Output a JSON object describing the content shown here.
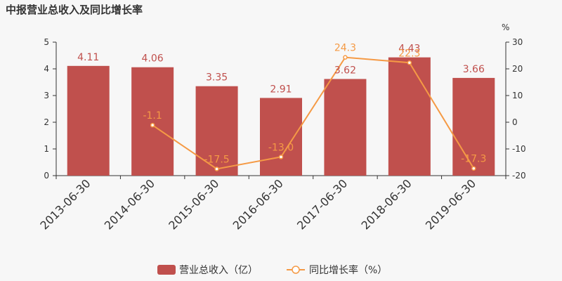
{
  "chart_data": {
    "type": "bar",
    "title": "中报营业总收入及同比增长率",
    "categories": [
      "2013-06-30",
      "2014-06-30",
      "2015-06-30",
      "2016-06-30",
      "2017-06-30",
      "2018-06-30",
      "2019-06-30"
    ],
    "series": [
      {
        "name": "营业总收入（亿）",
        "type": "bar",
        "axis": "left",
        "color": "#c0504d",
        "values": [
          4.11,
          4.06,
          3.35,
          2.91,
          3.62,
          4.43,
          3.66
        ],
        "labels": [
          "4.11",
          "4.06",
          "3.35",
          "2.91",
          "3.62",
          "4.43",
          "3.66"
        ]
      },
      {
        "name": "同比增长率（%）",
        "type": "line",
        "axis": "right",
        "color": "#f59a45",
        "values": [
          null,
          -1.1,
          -17.5,
          -13.0,
          24.3,
          22.3,
          -17.3
        ],
        "labels": [
          "",
          "-1.1",
          "-17.5",
          "-13.0",
          "24.3",
          "22.3",
          "-17.3"
        ]
      }
    ],
    "y_left": {
      "min": 0,
      "max": 5,
      "ticks": [
        "0",
        "1",
        "2",
        "3",
        "4",
        "5"
      ]
    },
    "y_right": {
      "min": -20,
      "max": 30,
      "unit": "%",
      "ticks": [
        "-20",
        "-10",
        "0",
        "10",
        "20",
        "30"
      ]
    },
    "legend": {
      "position": "bottom-center",
      "labels": [
        "营业总收入（亿）",
        "同比增长率（%）"
      ]
    },
    "grid": false
  }
}
